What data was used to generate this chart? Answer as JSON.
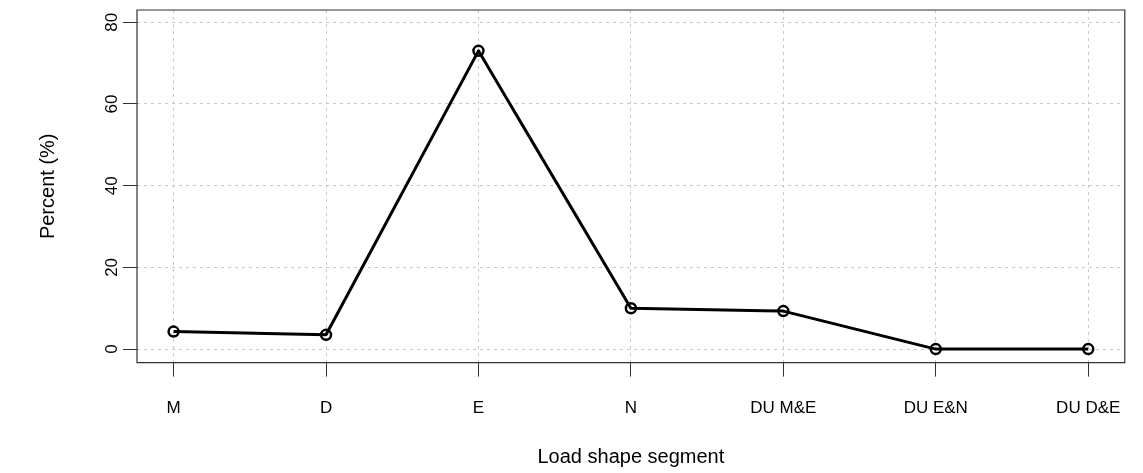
{
  "chart_data": {
    "type": "line",
    "xlabel": "Load shape segment",
    "ylabel": "Percent (%)",
    "categories": [
      "M",
      "D",
      "E",
      "N",
      "DU M&E",
      "DU E&N",
      "DU D&E"
    ],
    "series": [
      {
        "color": "#000000",
        "values": [
          4.3,
          3.5,
          73,
          10,
          9.3,
          0,
          0
        ]
      }
    ],
    "ylim": [
      -3.3,
      83
    ],
    "yticks": [
      0,
      20,
      40,
      60,
      80
    ],
    "grid": true,
    "legend": false,
    "marker": "circle",
    "line_style": "solid"
  }
}
